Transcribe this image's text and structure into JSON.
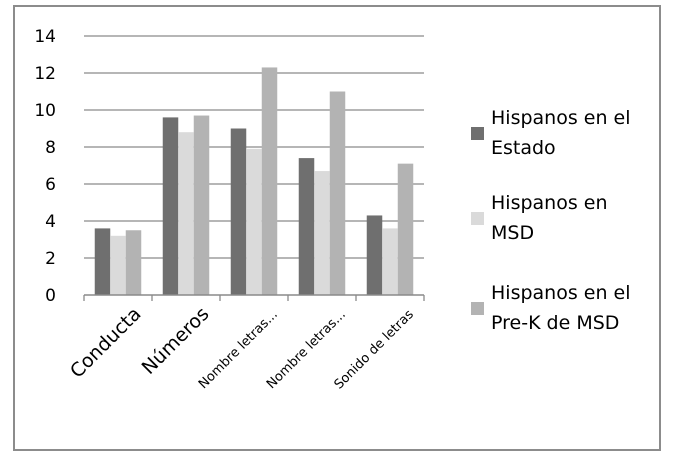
{
  "chart_data": {
    "type": "bar",
    "title": "",
    "xlabel": "",
    "ylabel": "",
    "ylim": [
      0,
      14
    ],
    "yticks": [
      0,
      2,
      4,
      6,
      8,
      10,
      12,
      14
    ],
    "grid": true,
    "legend_position": "right",
    "categories": [
      "Conducta",
      "Números",
      "Nombre letras...",
      "Nombre letras...",
      "Sonido de letras"
    ],
    "series": [
      {
        "name": "Hispanos en el Estado",
        "color": "#6f6f6f",
        "values": [
          3.6,
          9.6,
          9.0,
          7.4,
          4.3
        ]
      },
      {
        "name": "Hispanos en MSD",
        "color": "#dadada",
        "values": [
          3.2,
          8.8,
          7.9,
          6.7,
          3.6
        ]
      },
      {
        "name": "Hispanos en el Pre-K de MSD",
        "color": "#b3b3b3",
        "values": [
          3.5,
          9.7,
          12.3,
          11.0,
          7.1
        ]
      }
    ],
    "legend_lines": [
      [
        "Hispanos en el",
        "Estado"
      ],
      [
        "Hispanos en",
        "MSD"
      ],
      [
        "Hispanos en el",
        "Pre-K de MSD"
      ]
    ]
  }
}
